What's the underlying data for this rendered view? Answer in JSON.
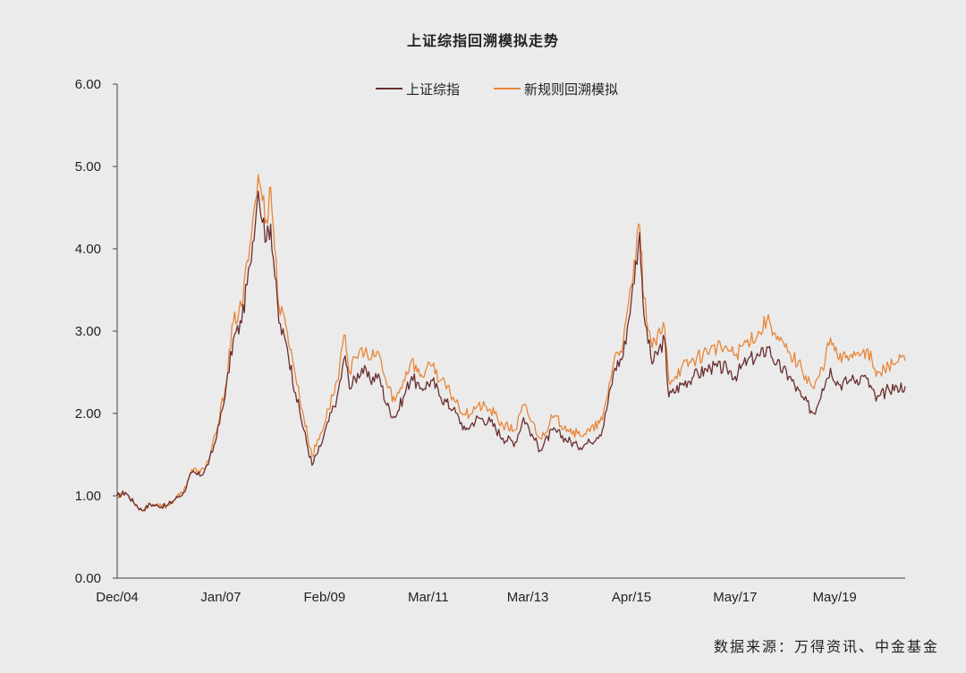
{
  "chart_data": {
    "type": "line",
    "title": "上证综指回溯模拟走势",
    "xlabel": "",
    "ylabel": "",
    "x_ticks": [
      "Dec/04",
      "Jan/07",
      "Feb/09",
      "Mar/11",
      "Mar/13",
      "Apr/15",
      "May/17",
      "May/19"
    ],
    "y_ticks": [
      "0.00",
      "1.00",
      "2.00",
      "3.00",
      "4.00",
      "5.00",
      "6.00"
    ],
    "ylim": [
      0,
      6
    ],
    "xlim": [
      "2004-12",
      "2020-10"
    ],
    "grid": false,
    "legend_position": "top-center",
    "series": [
      {
        "name": "上证综指",
        "color": "#6b2e2e",
        "points": [
          [
            "2004-12",
            1.0
          ],
          [
            "2005-02",
            1.04
          ],
          [
            "2005-04",
            0.92
          ],
          [
            "2005-06",
            0.82
          ],
          [
            "2005-08",
            0.9
          ],
          [
            "2005-10",
            0.87
          ],
          [
            "2005-12",
            0.88
          ],
          [
            "2006-02",
            0.96
          ],
          [
            "2006-04",
            1.04
          ],
          [
            "2006-06",
            1.28
          ],
          [
            "2006-08",
            1.24
          ],
          [
            "2006-10",
            1.38
          ],
          [
            "2006-12",
            1.72
          ],
          [
            "2007-02",
            2.2
          ],
          [
            "2007-04",
            2.9
          ],
          [
            "2007-06",
            3.1
          ],
          [
            "2007-08",
            3.8
          ],
          [
            "2007-10",
            4.7
          ],
          [
            "2007-12",
            4.1
          ],
          [
            "2008-01",
            4.3
          ],
          [
            "2008-03",
            3.1
          ],
          [
            "2008-05",
            2.8
          ],
          [
            "2008-07",
            2.25
          ],
          [
            "2008-09",
            1.8
          ],
          [
            "2008-11",
            1.37
          ],
          [
            "2009-01",
            1.6
          ],
          [
            "2009-03",
            1.9
          ],
          [
            "2009-05",
            2.2
          ],
          [
            "2009-07",
            2.7
          ],
          [
            "2009-08",
            2.3
          ],
          [
            "2009-11",
            2.55
          ],
          [
            "2010-01",
            2.4
          ],
          [
            "2010-03",
            2.48
          ],
          [
            "2010-05",
            2.1
          ],
          [
            "2010-07",
            1.95
          ],
          [
            "2010-09",
            2.2
          ],
          [
            "2010-11",
            2.45
          ],
          [
            "2011-01",
            2.3
          ],
          [
            "2011-04",
            2.4
          ],
          [
            "2011-06",
            2.2
          ],
          [
            "2011-09",
            2.05
          ],
          [
            "2011-12",
            1.8
          ],
          [
            "2012-03",
            1.95
          ],
          [
            "2012-06",
            1.9
          ],
          [
            "2012-09",
            1.7
          ],
          [
            "2012-12",
            1.65
          ],
          [
            "2013-02",
            1.95
          ],
          [
            "2013-04",
            1.75
          ],
          [
            "2013-06",
            1.55
          ],
          [
            "2013-09",
            1.8
          ],
          [
            "2013-12",
            1.7
          ],
          [
            "2014-03",
            1.6
          ],
          [
            "2014-06",
            1.65
          ],
          [
            "2014-09",
            1.8
          ],
          [
            "2014-12",
            2.55
          ],
          [
            "2015-02",
            2.7
          ],
          [
            "2015-04",
            3.4
          ],
          [
            "2015-06",
            4.2
          ],
          [
            "2015-07",
            3.2
          ],
          [
            "2015-09",
            2.6
          ],
          [
            "2015-12",
            2.9
          ],
          [
            "2016-01",
            2.2
          ],
          [
            "2016-04",
            2.35
          ],
          [
            "2016-07",
            2.45
          ],
          [
            "2016-11",
            2.55
          ],
          [
            "2017-03",
            2.55
          ],
          [
            "2017-05",
            2.45
          ],
          [
            "2017-08",
            2.65
          ],
          [
            "2017-11",
            2.7
          ],
          [
            "2018-01",
            2.8
          ],
          [
            "2018-03",
            2.6
          ],
          [
            "2018-06",
            2.45
          ],
          [
            "2018-09",
            2.2
          ],
          [
            "2018-12",
            2.0
          ],
          [
            "2019-02",
            2.3
          ],
          [
            "2019-04",
            2.55
          ],
          [
            "2019-06",
            2.35
          ],
          [
            "2019-09",
            2.4
          ],
          [
            "2019-12",
            2.45
          ],
          [
            "2020-02",
            2.3
          ],
          [
            "2020-03",
            2.15
          ],
          [
            "2020-06",
            2.3
          ],
          [
            "2020-08",
            2.33
          ],
          [
            "2020-10",
            2.33
          ]
        ]
      },
      {
        "name": "新规则回溯模拟",
        "color": "#e8873a",
        "points": [
          [
            "2004-12",
            1.0
          ],
          [
            "2005-02",
            1.04
          ],
          [
            "2005-04",
            0.92
          ],
          [
            "2005-06",
            0.82
          ],
          [
            "2005-08",
            0.9
          ],
          [
            "2005-10",
            0.87
          ],
          [
            "2005-12",
            0.88
          ],
          [
            "2006-02",
            0.96
          ],
          [
            "2006-04",
            1.05
          ],
          [
            "2006-06",
            1.32
          ],
          [
            "2006-08",
            1.28
          ],
          [
            "2006-10",
            1.42
          ],
          [
            "2006-12",
            1.78
          ],
          [
            "2007-02",
            2.3
          ],
          [
            "2007-04",
            3.1
          ],
          [
            "2007-06",
            3.3
          ],
          [
            "2007-08",
            4.05
          ],
          [
            "2007-10",
            4.9
          ],
          [
            "2007-12",
            4.35
          ],
          [
            "2008-01",
            4.75
          ],
          [
            "2008-03",
            3.3
          ],
          [
            "2008-05",
            3.0
          ],
          [
            "2008-07",
            2.45
          ],
          [
            "2008-09",
            1.95
          ],
          [
            "2008-11",
            1.48
          ],
          [
            "2009-01",
            1.75
          ],
          [
            "2009-03",
            2.05
          ],
          [
            "2009-05",
            2.4
          ],
          [
            "2009-07",
            2.95
          ],
          [
            "2009-08",
            2.5
          ],
          [
            "2009-11",
            2.8
          ],
          [
            "2010-01",
            2.65
          ],
          [
            "2010-03",
            2.75
          ],
          [
            "2010-05",
            2.35
          ],
          [
            "2010-07",
            2.15
          ],
          [
            "2010-09",
            2.4
          ],
          [
            "2010-11",
            2.65
          ],
          [
            "2011-01",
            2.45
          ],
          [
            "2011-04",
            2.58
          ],
          [
            "2011-06",
            2.4
          ],
          [
            "2011-09",
            2.2
          ],
          [
            "2011-12",
            1.98
          ],
          [
            "2012-03",
            2.1
          ],
          [
            "2012-06",
            2.05
          ],
          [
            "2012-09",
            1.85
          ],
          [
            "2012-12",
            1.8
          ],
          [
            "2013-02",
            2.1
          ],
          [
            "2013-04",
            1.9
          ],
          [
            "2013-06",
            1.7
          ],
          [
            "2013-09",
            1.95
          ],
          [
            "2013-12",
            1.85
          ],
          [
            "2014-03",
            1.75
          ],
          [
            "2014-06",
            1.78
          ],
          [
            "2014-09",
            1.92
          ],
          [
            "2014-12",
            2.7
          ],
          [
            "2015-02",
            2.85
          ],
          [
            "2015-04",
            3.55
          ],
          [
            "2015-06",
            4.28
          ],
          [
            "2015-07",
            3.4
          ],
          [
            "2015-09",
            2.8
          ],
          [
            "2015-12",
            3.05
          ],
          [
            "2016-01",
            2.4
          ],
          [
            "2016-04",
            2.55
          ],
          [
            "2016-07",
            2.65
          ],
          [
            "2016-11",
            2.78
          ],
          [
            "2017-03",
            2.8
          ],
          [
            "2017-05",
            2.7
          ],
          [
            "2017-08",
            2.9
          ],
          [
            "2017-11",
            2.98
          ],
          [
            "2018-01",
            3.2
          ],
          [
            "2018-03",
            2.9
          ],
          [
            "2018-06",
            2.75
          ],
          [
            "2018-09",
            2.55
          ],
          [
            "2018-12",
            2.3
          ],
          [
            "2019-02",
            2.55
          ],
          [
            "2019-04",
            2.92
          ],
          [
            "2019-06",
            2.65
          ],
          [
            "2019-09",
            2.72
          ],
          [
            "2019-12",
            2.78
          ],
          [
            "2020-02",
            2.65
          ],
          [
            "2020-03",
            2.45
          ],
          [
            "2020-06",
            2.58
          ],
          [
            "2020-08",
            2.62
          ],
          [
            "2020-10",
            2.64
          ]
        ]
      }
    ]
  },
  "source_note": "数据来源：万得资讯、中金基金"
}
